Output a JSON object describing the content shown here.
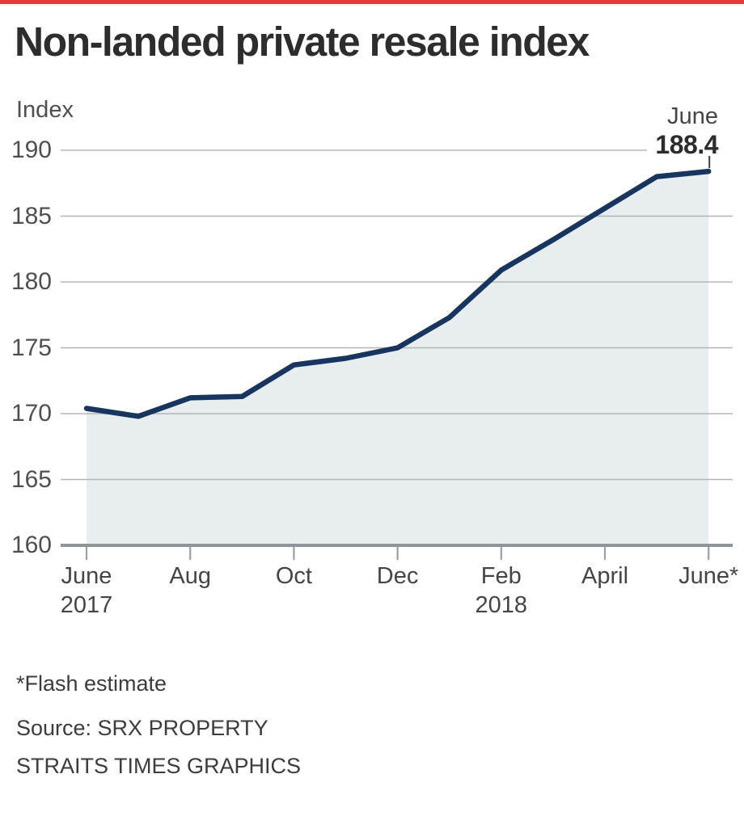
{
  "title": "Non-landed private resale index",
  "y_axis": {
    "label": "Index",
    "ticks": [
      190,
      185,
      180,
      175,
      170,
      165,
      160
    ]
  },
  "x_axis": {
    "ticks": [
      {
        "label": "June",
        "sub": "2017",
        "month_index": 0
      },
      {
        "label": "Aug",
        "sub": "",
        "month_index": 2
      },
      {
        "label": "Oct",
        "sub": "",
        "month_index": 4
      },
      {
        "label": "Dec",
        "sub": "",
        "month_index": 6
      },
      {
        "label": "Feb",
        "sub": "2018",
        "month_index": 8
      },
      {
        "label": "April",
        "sub": "",
        "month_index": 10
      },
      {
        "label": "June*",
        "sub": "",
        "month_index": 12
      }
    ]
  },
  "annotation": {
    "month": "June",
    "value": "188.4"
  },
  "footnotes": {
    "flash": "*Flash estimate",
    "source": "Source: SRX PROPERTY",
    "credit": "STRAITS TIMES GRAPHICS"
  },
  "colors": {
    "top_bar": "#e8393d",
    "line": "#17355e",
    "area_fill": "#e8edf0",
    "gridline": "#b5b5b5",
    "axis_line": "#8f9498",
    "tick": "#9aa0a3",
    "callout": "#3f3f3f"
  },
  "chart_data": {
    "type": "area",
    "title": "Non-landed private resale index",
    "ylabel": "Index",
    "ylim": [
      160,
      190
    ],
    "grid": true,
    "x": [
      "Jun 2017",
      "Jul 2017",
      "Aug 2017",
      "Sep 2017",
      "Oct 2017",
      "Nov 2017",
      "Dec 2017",
      "Jan 2018",
      "Feb 2018",
      "Mar 2018",
      "Apr 2018",
      "May 2018",
      "Jun 2018"
    ],
    "values": [
      170.4,
      169.8,
      171.2,
      171.3,
      173.7,
      174.2,
      175.0,
      177.3,
      180.9,
      183.2,
      185.6,
      188.0,
      188.4
    ],
    "annotation": {
      "x": "Jun 2018",
      "label": "June 188.4"
    }
  }
}
